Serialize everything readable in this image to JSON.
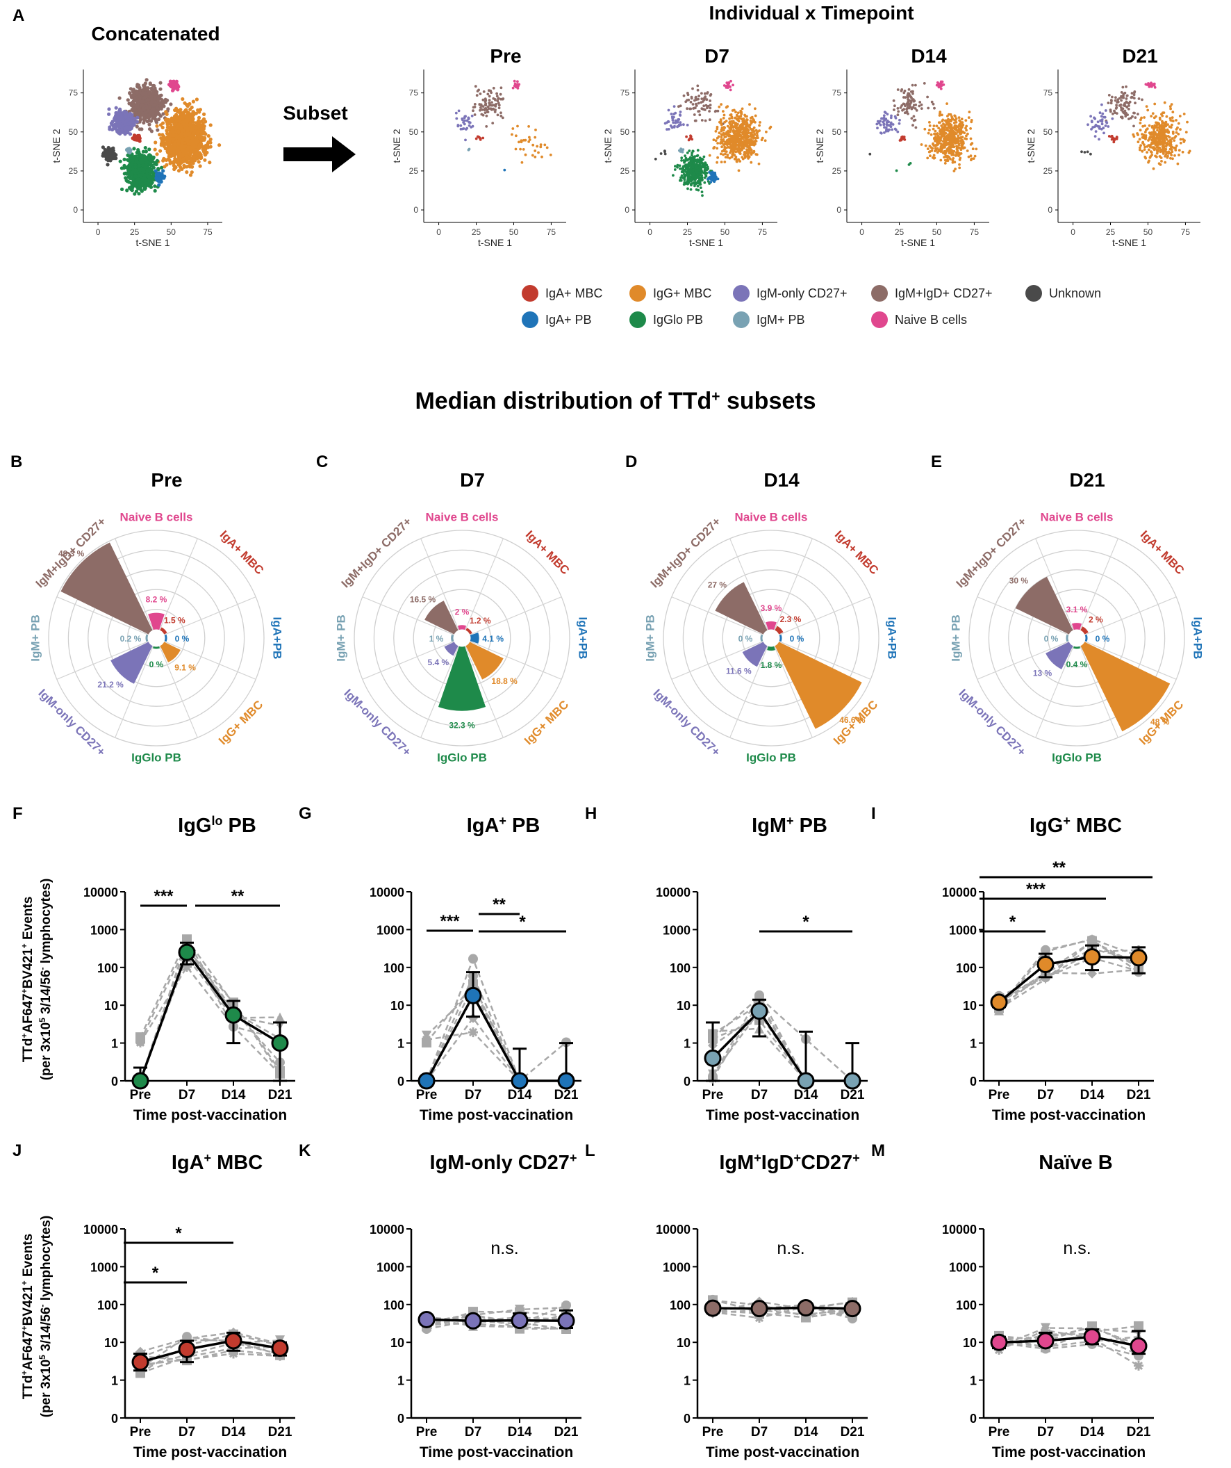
{
  "colors": {
    "IgA_MBC": "#c23b2e",
    "IgG_MBC": "#e08a2a",
    "IgM_only_CD27": "#7b74b8",
    "IgM_IgD_CD27": "#8d6c67",
    "Unknown": "#4a4a4a",
    "IgA_PB": "#1f74b8",
    "IgGlo_PB": "#1e8a4a",
    "IgM_PB": "#79a2b3",
    "Naive": "#e0478e",
    "grey": "#a8a8a8"
  },
  "panel_a": {
    "letter": "A",
    "concat_title": "Concatenated",
    "indiv_title": "Individual x Timepoint",
    "subset_label": "Subset",
    "xlabel": "t-SNE 1",
    "ylabel": "t-SNE 2",
    "xticks": [
      "0",
      "25",
      "50",
      "75"
    ],
    "yticks": [
      "0",
      "25",
      "50",
      "75"
    ],
    "timepoints": [
      "Pre",
      "D7",
      "D14",
      "D21"
    ],
    "legend": [
      {
        "label": "IgA+ MBC",
        "key": "IgA_MBC"
      },
      {
        "label": "IgG+ MBC",
        "key": "IgG_MBC"
      },
      {
        "label": "IgM-only CD27+",
        "key": "IgM_only_CD27"
      },
      {
        "label": "IgM+IgD+ CD27+",
        "key": "IgM_IgD_CD27"
      },
      {
        "label": "Unknown",
        "key": "Unknown"
      },
      {
        "label": "IgA+ PB",
        "key": "IgA_PB"
      },
      {
        "label": "IgGlo PB",
        "key": "IgGlo_PB"
      },
      {
        "label": "IgM+ PB",
        "key": "IgM_PB"
      },
      {
        "label": "Naive B cells",
        "key": "Naive"
      }
    ]
  },
  "section_title": "Median distribution of TTd",
  "section_title_sup": "+",
  "section_title_end": " subsets",
  "chart_data": [
    {
      "type": "polar_bar",
      "panel": "B",
      "title": "Pre",
      "axis_labels": [
        "Naive B cells",
        "IgA+ MBC",
        "IgA+PB",
        "IgG+ MBC",
        "IgGlo PB",
        "IgM-only CD27+",
        "IgM+ PB",
        "IgM+IgD+ CD27+"
      ],
      "axis_keys": [
        "Naive",
        "IgA_MBC",
        "IgA_PB",
        "IgG_MBC",
        "IgGlo_PB",
        "IgM_only_CD27",
        "IgM_PB",
        "IgM_IgD_CD27"
      ],
      "values": [
        8.2,
        1.5,
        0,
        9.1,
        0,
        21.2,
        0.2,
        49.3
      ],
      "value_labels": [
        "8.2 %",
        "1.5 %",
        "0 %",
        "9.1 %",
        "0 %",
        "21.2 %",
        "0.2 %",
        "49.3 %"
      ]
    },
    {
      "type": "polar_bar",
      "panel": "C",
      "title": "D7",
      "axis_labels": [
        "Naive B cells",
        "IgA+ MBC",
        "IgA+PB",
        "IgG+ MBC",
        "IgGlo PB",
        "IgM-only CD27+",
        "IgM+ PB",
        "IgM+IgD+ CD27+"
      ],
      "axis_keys": [
        "Naive",
        "IgA_MBC",
        "IgA_PB",
        "IgG_MBC",
        "IgGlo_PB",
        "IgM_only_CD27",
        "IgM_PB",
        "IgM_IgD_CD27"
      ],
      "values": [
        2,
        1.2,
        4.1,
        18.8,
        32.3,
        5.4,
        1,
        16.5
      ],
      "value_labels": [
        "2 %",
        "1.2 %",
        "4.1 %",
        "18.8 %",
        "32.3 %",
        "5.4 %",
        "1 %",
        "16.5 %"
      ]
    },
    {
      "type": "polar_bar",
      "panel": "D",
      "title": "D14",
      "axis_labels": [
        "Naive B cells",
        "IgA+ MBC",
        "IgA+PB",
        "IgG+ MBC",
        "IgGlo PB",
        "IgM-only CD27+",
        "IgM+ PB",
        "IgM+IgD+ CD27+"
      ],
      "axis_keys": [
        "Naive",
        "IgA_MBC",
        "IgA_PB",
        "IgG_MBC",
        "IgGlo_PB",
        "IgM_only_CD27",
        "IgM_PB",
        "IgM_IgD_CD27"
      ],
      "values": [
        3.9,
        2.3,
        0,
        46.6,
        1.8,
        11.6,
        0,
        27
      ],
      "value_labels": [
        "3.9 %",
        "2.3 %",
        "0 %",
        "46.6 %",
        "1.8 %",
        "11.6 %",
        "0 %",
        "27 %"
      ]
    },
    {
      "type": "polar_bar",
      "panel": "E",
      "title": "D21",
      "axis_labels": [
        "Naive B cells",
        "IgA+ MBC",
        "IgA+PB",
        "IgG+ MBC",
        "IgGlo PB",
        "IgM-only CD27+",
        "IgM+ PB",
        "IgM+IgD+ CD27+"
      ],
      "axis_keys": [
        "Naive",
        "IgA_MBC",
        "IgA_PB",
        "IgG_MBC",
        "IgGlo_PB",
        "IgM_only_CD27",
        "IgM_PB",
        "IgM_IgD_CD27"
      ],
      "values": [
        3.1,
        2,
        0,
        48,
        0.4,
        13,
        0,
        30
      ],
      "value_labels": [
        "3.1 %",
        "2 %",
        "0 %",
        "48 %",
        "0.4 %",
        "13 %",
        "0 %",
        "30 %"
      ]
    },
    {
      "type": "line",
      "panel": "F",
      "title": "IgG",
      "title_sup": "lo",
      "title_rest": " PB",
      "color_key": "IgGlo_PB",
      "x": [
        "Pre",
        "D7",
        "D14",
        "D21"
      ],
      "medians": [
        0,
        250,
        5.5,
        1
      ],
      "err_hi": [
        0.35,
        450,
        13,
        3.5
      ],
      "err_lo": [
        0,
        120,
        1,
        0
      ],
      "ylim": [
        0,
        10000
      ],
      "yscale": "log",
      "annotations": [
        {
          "from": 0,
          "to": 1,
          "label": "***"
        },
        {
          "from": 1,
          "to": 3,
          "label": "**"
        }
      ]
    },
    {
      "type": "line",
      "panel": "G",
      "title": "IgA",
      "title_sup": "+",
      "title_rest": " PB",
      "color_key": "IgA_PB",
      "x": [
        "Pre",
        "D7",
        "D14",
        "D21"
      ],
      "medians": [
        0,
        18,
        0,
        0
      ],
      "err_hi": [
        0,
        75,
        0.85,
        1
      ],
      "err_lo": [
        0,
        5,
        0,
        0
      ],
      "ylim": [
        0,
        10000
      ],
      "yscale": "log",
      "annotations": [
        {
          "from": 0,
          "to": 1,
          "label": "***"
        },
        {
          "from": 1,
          "to": 2,
          "label": "**"
        },
        {
          "from": 1,
          "to": 3,
          "label": "*"
        }
      ]
    },
    {
      "type": "line",
      "panel": "H",
      "title": "IgM",
      "title_sup": "+",
      "title_rest": " PB",
      "color_key": "IgM_PB",
      "x": [
        "Pre",
        "D7",
        "D14",
        "D21"
      ],
      "medians": [
        0.6,
        7,
        0,
        0
      ],
      "err_hi": [
        3.5,
        14,
        2,
        1
      ],
      "err_lo": [
        0,
        1.5,
        0,
        0
      ],
      "ylim": [
        0,
        10000
      ],
      "yscale": "log",
      "annotations": [
        {
          "from": 1,
          "to": 3,
          "label": "*"
        }
      ]
    },
    {
      "type": "line",
      "panel": "I",
      "title": "IgG",
      "title_sup": "+",
      "title_rest": " MBC",
      "color_key": "IgG_MBC",
      "x": [
        "Pre",
        "D7",
        "D14",
        "D21"
      ],
      "medians": [
        12,
        120,
        190,
        180
      ],
      "err_hi": [
        16,
        230,
        380,
        340
      ],
      "err_lo": [
        9,
        55,
        85,
        70
      ],
      "ylim": [
        0,
        10000
      ],
      "yscale": "log",
      "annotations": [
        {
          "from": 0,
          "to": 1,
          "label": "*"
        },
        {
          "from": 0,
          "to": 2,
          "label": "***"
        },
        {
          "from": 0,
          "to": 3,
          "label": "**"
        }
      ]
    },
    {
      "type": "line",
      "panel": "J",
      "title": "IgA",
      "title_sup": "+",
      "title_rest": " MBC",
      "color_key": "IgA_MBC",
      "x": [
        "Pre",
        "D7",
        "D14",
        "D21"
      ],
      "medians": [
        3,
        6.5,
        11,
        7
      ],
      "err_hi": [
        5,
        11,
        18,
        10
      ],
      "err_lo": [
        1.8,
        3,
        6,
        4.5
      ],
      "ylim": [
        0,
        10000
      ],
      "yscale": "log",
      "annotations": [
        {
          "from": 0,
          "to": 1,
          "label": "*"
        },
        {
          "from": 0,
          "to": 2,
          "label": "*"
        }
      ]
    },
    {
      "type": "line",
      "panel": "K",
      "title": "IgM-only CD27",
      "title_sup": "+",
      "title_rest": "",
      "color_key": "IgM_only_CD27",
      "x": [
        "Pre",
        "D7",
        "D14",
        "D21"
      ],
      "medians": [
        40,
        37,
        38,
        37
      ],
      "err_hi": [
        45,
        48,
        58,
        70
      ],
      "err_lo": [
        30,
        28,
        28,
        24
      ],
      "ylim": [
        0,
        10000
      ],
      "yscale": "log",
      "ns": "n.s.",
      "annotations": []
    },
    {
      "type": "line",
      "panel": "L",
      "title": "IgM",
      "title_sup": "+",
      "title_mid": "IgD",
      "title_sup2": "+",
      "title_rest": "CD27",
      "title_sup3": "+",
      "color_key": "IgM_IgD_CD27",
      "x": [
        "Pre",
        "D7",
        "D14",
        "D21"
      ],
      "medians": [
        80,
        78,
        82,
        78
      ],
      "err_hi": [
        100,
        100,
        105,
        100
      ],
      "err_lo": [
        60,
        60,
        62,
        60
      ],
      "ylim": [
        0,
        10000
      ],
      "yscale": "log",
      "ns": "n.s.",
      "annotations": []
    },
    {
      "type": "line",
      "panel": "M",
      "title": "Naïve B",
      "title_sup": "",
      "title_rest": "",
      "color_key": "Naive",
      "x": [
        "Pre",
        "D7",
        "D14",
        "D21"
      ],
      "medians": [
        10,
        11,
        14,
        8
      ],
      "err_hi": [
        14,
        18,
        22,
        20
      ],
      "err_lo": [
        7,
        8,
        9,
        5
      ],
      "ylim": [
        0,
        10000
      ],
      "yscale": "log",
      "ns": "n.s.",
      "annotations": []
    }
  ],
  "line_axis": {
    "yticks": [
      "0",
      "1",
      "10",
      "100",
      "1000",
      "10000"
    ],
    "xlabel": "Time post-vaccination",
    "ylabel1": "TTd+AF647+BV421+ Events",
    "ylabel2": "(per 3x10^5 3/14/56- lymphocytes)"
  }
}
